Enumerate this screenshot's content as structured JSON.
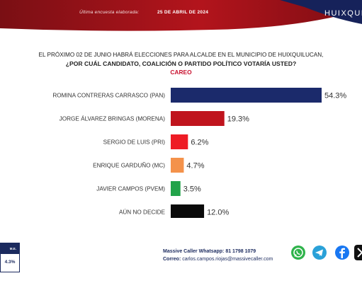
{
  "header": {
    "survey_label": "Última encuesta elaborada:",
    "date": "25 DE ABRIL DE 2024",
    "city": "HUIXQUILU"
  },
  "question": {
    "line1": "EL PRÓXIMO 02 DE JUNIO HABRÁ ELECCIONES PARA ALCALDE EN EL MUNICIPIO DE HUIXQUILUCAN,",
    "line2": "¿POR CUÁL CANDIDATO, COALICIÓN O PARTIDO POLÍTICO VOTARÍA USTED?",
    "line3": "CAREO"
  },
  "chart_data": {
    "type": "bar",
    "orientation": "horizontal",
    "categories": [
      "ROMINA CONTRERAS CARRASCO (PAN)",
      "JORGE ÁLVAREZ BRINGAS (MORENA)",
      "SERGIO DE LUIS (PRI)",
      "ENRIQUE GARDUÑO (MC)",
      "JAVIER CAMPOS (PVEM)",
      "AÚN NO DECIDE"
    ],
    "values": [
      54.3,
      19.3,
      6.2,
      4.7,
      3.5,
      12.0
    ],
    "value_labels": [
      "54.3%",
      "19.3%",
      "6.2%",
      "4.7%",
      "3.5%",
      "12.0%"
    ],
    "colors": [
      "#1b2a6b",
      "#c0141d",
      "#ee1c25",
      "#f4924b",
      "#22a34a",
      "#0a0a0a"
    ],
    "xlim": [
      0,
      54.3
    ],
    "grid": false,
    "legend": "none"
  },
  "footer": {
    "box_label": "M.E.",
    "box_value": "4.3%",
    "whatsapp_label": "Massive Caller Whatsapp:",
    "whatsapp_number": "81 1798 1079",
    "email_label": "Correo:",
    "email": "carlos.campos.riojas@massivecaller.com",
    "icons": [
      "whatsapp-icon",
      "telegram-icon",
      "facebook-icon",
      "x-icon"
    ]
  }
}
